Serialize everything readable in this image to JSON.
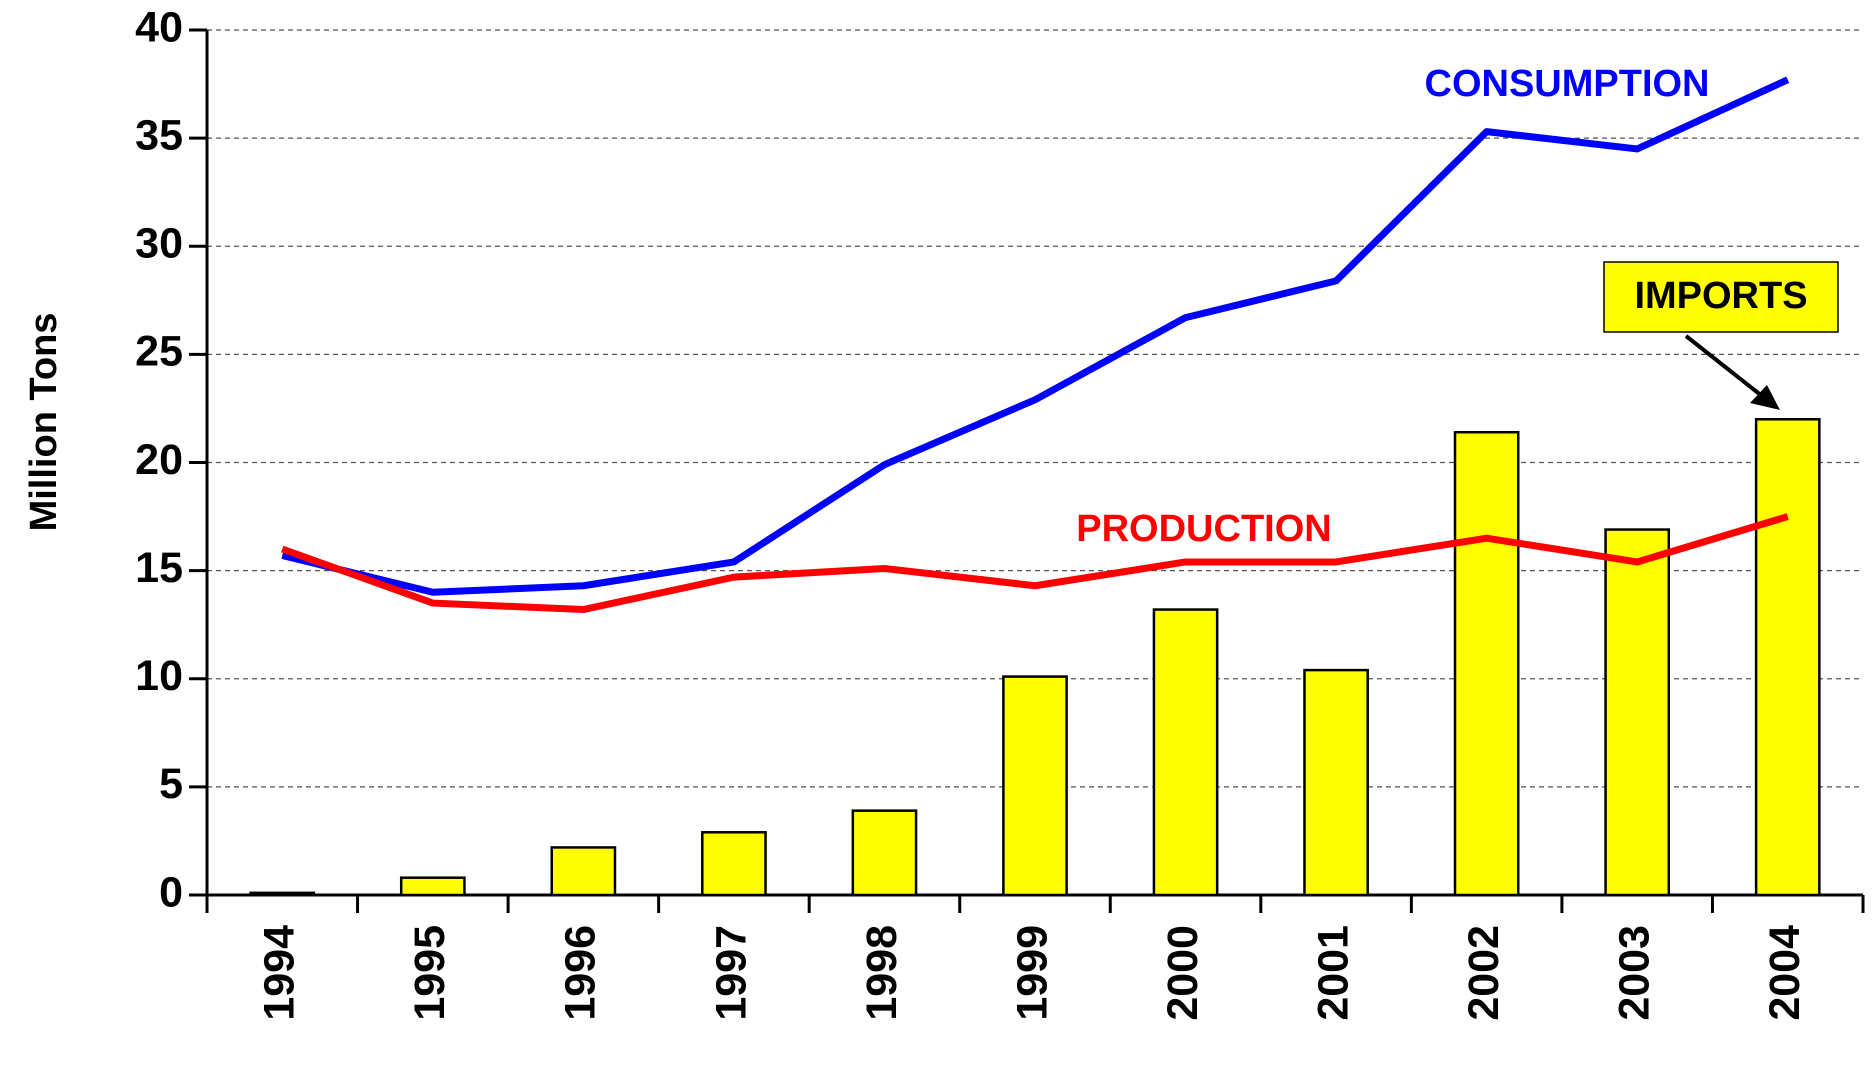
{
  "chart_data": {
    "type": "bar",
    "y_label": "Million Tons",
    "categories": [
      "1994",
      "1995",
      "1996",
      "1997",
      "1998",
      "1999",
      "2000",
      "2001",
      "2002",
      "2003",
      "2004"
    ],
    "series": [
      {
        "name": "IMPORTS",
        "type": "bar",
        "color": "#ffff00",
        "values": [
          0.1,
          0.8,
          2.2,
          2.9,
          3.9,
          10.1,
          13.2,
          10.4,
          21.4,
          16.9,
          22.0
        ]
      },
      {
        "name": "CONSUMPTION",
        "type": "line",
        "color": "#0000ff",
        "values": [
          15.7,
          14.0,
          14.3,
          15.4,
          19.9,
          22.9,
          26.7,
          28.4,
          35.3,
          34.5,
          37.7
        ]
      },
      {
        "name": "PRODUCTION",
        "type": "line",
        "color": "#ff0000",
        "values": [
          16.0,
          13.5,
          13.2,
          14.7,
          15.1,
          14.3,
          15.4,
          15.4,
          16.5,
          15.4,
          17.5
        ]
      }
    ],
    "ylim": [
      0,
      40
    ],
    "yticks": [
      0,
      5,
      10,
      15,
      20,
      25,
      30,
      35,
      40
    ],
    "grid": true
  }
}
